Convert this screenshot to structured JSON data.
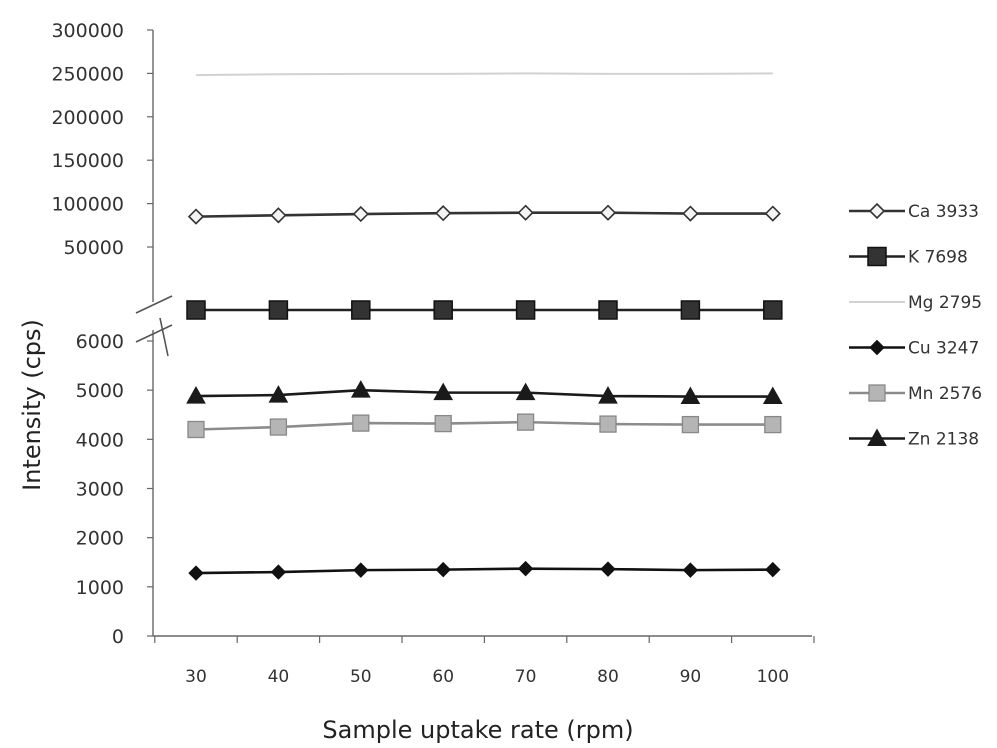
{
  "chart_data": {
    "type": "line",
    "xlabel": "Sample uptake rate (rpm)",
    "ylabel": "Intensity (cps)",
    "x": [
      30,
      40,
      50,
      60,
      70,
      80,
      90,
      100
    ],
    "y_axis": {
      "broken": true,
      "lower_range": [
        0,
        6000
      ],
      "lower_ticks": [
        "0",
        "1000",
        "2000",
        "3000",
        "4000",
        "5000",
        "6000"
      ],
      "upper_range": [
        50000,
        300000
      ],
      "upper_ticks": [
        "50000",
        "100000",
        "150000",
        "200000",
        "250000",
        "300000"
      ]
    },
    "legend_position": "right",
    "series": [
      {
        "name": "Ca 3933",
        "segment": "upper",
        "marker": "diamond-open",
        "color": "#333333",
        "values": [
          85000,
          86500,
          88000,
          89000,
          89500,
          89500,
          88500,
          88500
        ]
      },
      {
        "name": "K 7698",
        "segment": "upper",
        "marker": "square",
        "color": "#222222",
        "values": [
          null,
          null,
          null,
          null,
          null,
          null,
          null,
          null
        ]
      },
      {
        "name": "Mg 2795",
        "segment": "upper",
        "marker": "none",
        "color": "#d2d2d2",
        "values": [
          248000,
          249000,
          249500,
          249500,
          250000,
          249500,
          249500,
          250000
        ]
      },
      {
        "name": "Cu 3247",
        "segment": "lower",
        "marker": "diamond",
        "color": "#111111",
        "values": [
          1280,
          1300,
          1340,
          1350,
          1370,
          1360,
          1340,
          1350
        ]
      },
      {
        "name": "Mn 2576",
        "segment": "lower",
        "marker": "square-gray",
        "color": "#8c8c8c",
        "values": [
          4200,
          4250,
          4330,
          4320,
          4350,
          4310,
          4300,
          4300
        ]
      },
      {
        "name": "Zn 2138",
        "segment": "lower",
        "marker": "triangle",
        "color": "#1a1a1a",
        "values": [
          4880,
          4900,
          5000,
          4950,
          4950,
          4880,
          4870,
          4870
        ]
      }
    ]
  }
}
